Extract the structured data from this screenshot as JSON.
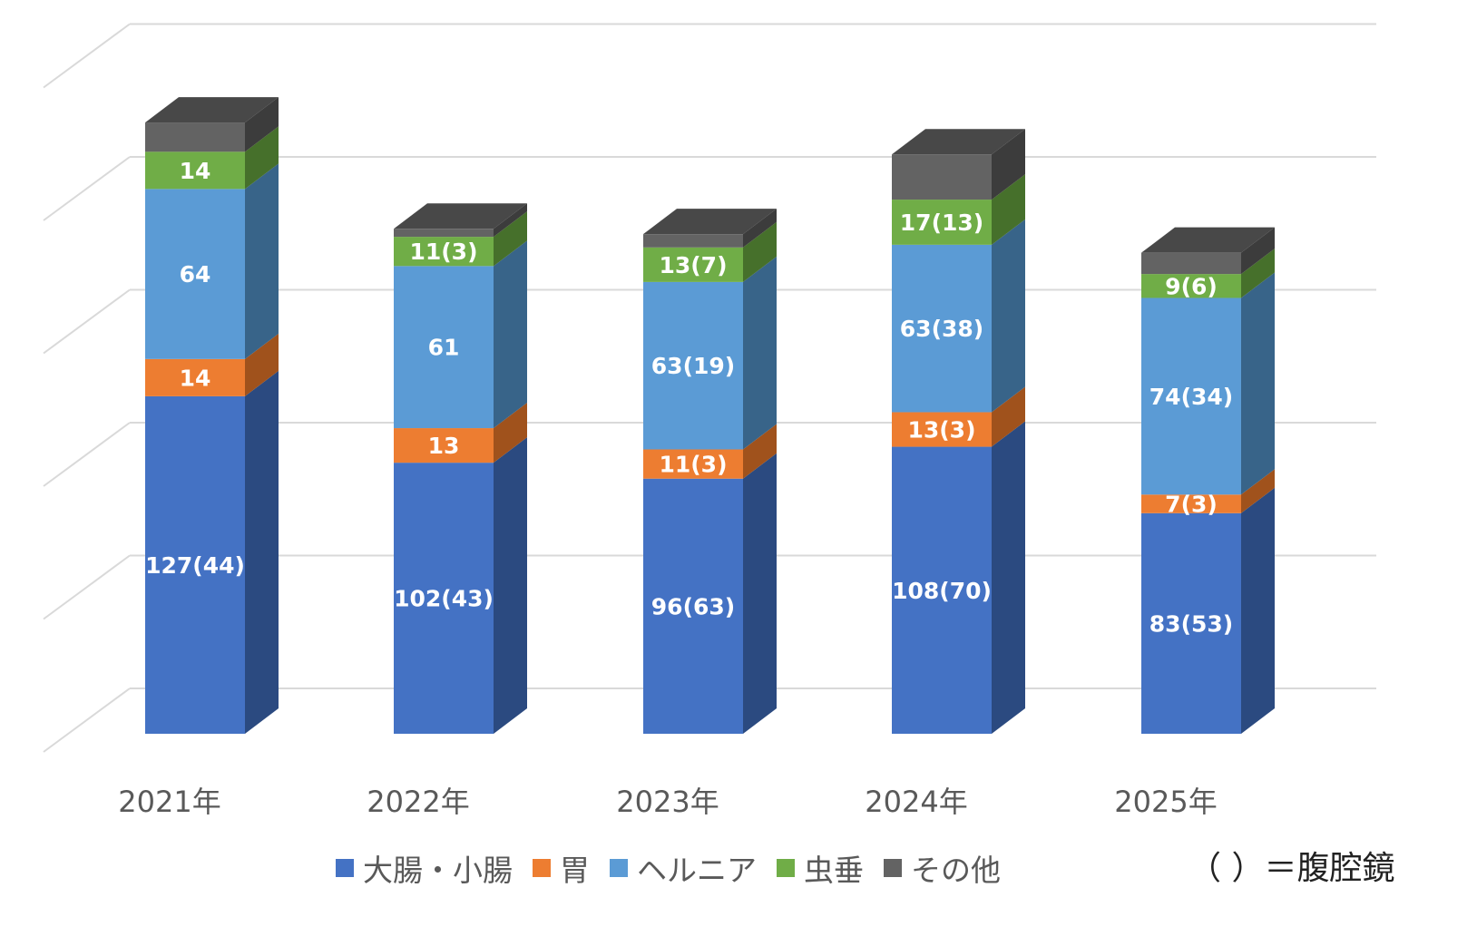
{
  "chart_data": {
    "type": "bar",
    "stacked": true,
    "three_d": true,
    "categories": [
      "2021年",
      "2022年",
      "2023年",
      "2024年",
      "2025年"
    ],
    "ylim": [
      0,
      250
    ],
    "grid": true,
    "legend_position": "bottom",
    "series": [
      {
        "name": "大腸・小腸",
        "color": "#4472C4",
        "side": "#2B4A80",
        "values": [
          127,
          102,
          96,
          108,
          83
        ],
        "labels": [
          "127(44)",
          "102(43)",
          "96(63)",
          "108(70)",
          "83(53)"
        ]
      },
      {
        "name": "胃",
        "color": "#ED7D31",
        "side": "#A0521C",
        "values": [
          14,
          13,
          11,
          13,
          7
        ],
        "labels": [
          "14",
          "13",
          "11(3)",
          "13(3)",
          "7(3)"
        ]
      },
      {
        "name": "ヘルニア",
        "color": "#5B9BD5",
        "side": "#386489",
        "values": [
          64,
          61,
          63,
          63,
          74
        ],
        "labels": [
          "64",
          "61",
          "63(19)",
          "63(38)",
          "74(34)"
        ]
      },
      {
        "name": "虫垂",
        "color": "#70AD47",
        "side": "#46702B",
        "values": [
          14,
          11,
          13,
          17,
          9
        ],
        "labels": [
          "14",
          "11(3)",
          "13(7)",
          "17(13)",
          "9(6)"
        ]
      },
      {
        "name": "その他",
        "color": "#636363",
        "side": "#3C3C3C",
        "values": [
          11,
          3,
          5,
          17,
          8
        ],
        "labels": [
          "",
          "",
          "",
          "",
          ""
        ]
      }
    ],
    "annotation": "（ ）＝腹腔鏡"
  }
}
